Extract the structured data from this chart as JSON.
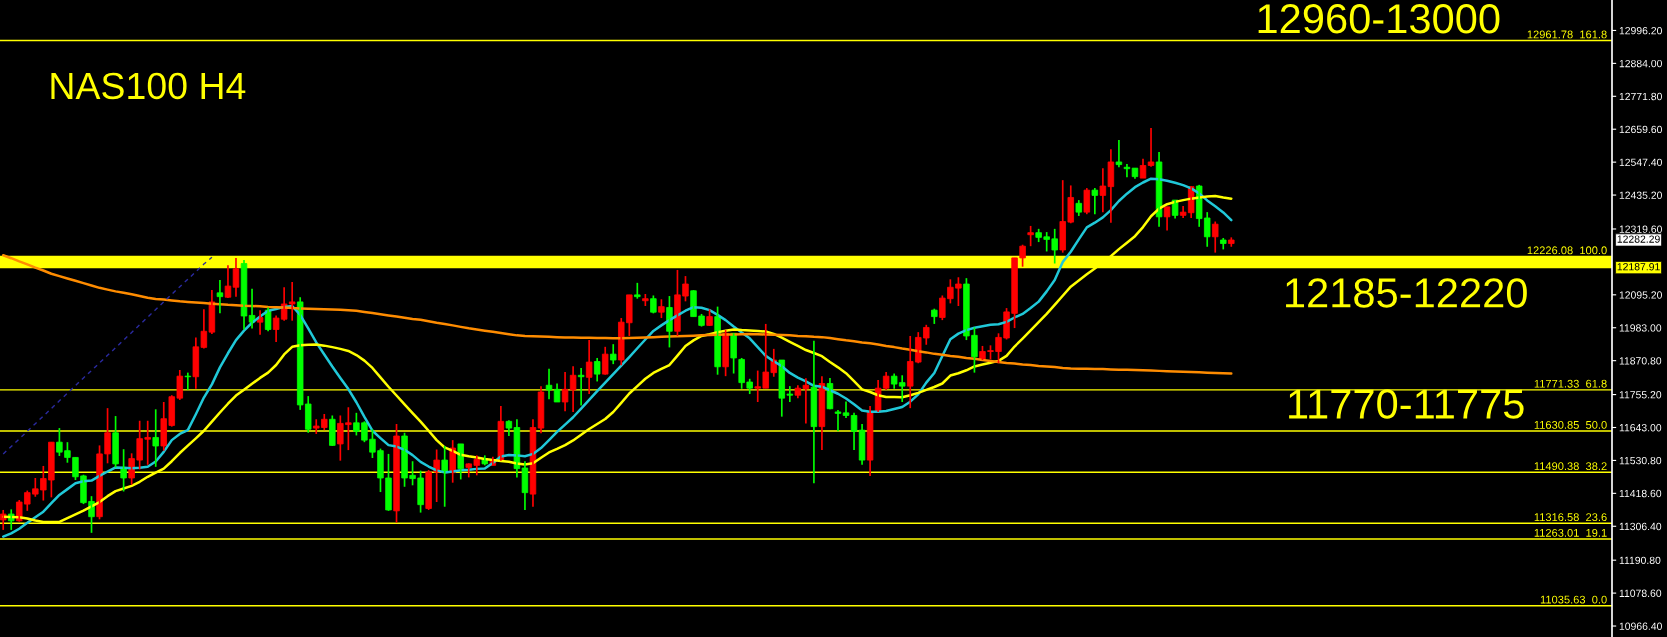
{
  "chart_data": {
    "type": "candlestick",
    "title": "NAS100 H4",
    "categories": [
      null,
      null,
      null,
      null,
      null,
      null,
      null,
      null,
      null,
      null,
      null,
      null,
      null,
      null,
      null,
      null,
      null,
      null,
      null,
      null,
      null,
      null,
      null,
      null,
      null,
      null,
      null,
      null,
      null,
      null,
      null,
      null,
      null,
      null,
      null,
      null,
      null,
      null,
      null,
      null,
      null,
      null,
      null,
      null,
      null,
      null,
      null,
      null,
      null,
      null,
      null,
      null,
      null,
      null,
      null,
      null,
      null,
      null,
      null,
      null,
      null,
      null,
      null,
      null,
      null,
      null,
      null,
      null,
      null,
      null,
      null,
      null,
      null,
      null,
      null,
      null,
      null,
      null,
      null,
      null,
      null,
      null,
      null,
      null,
      null,
      null,
      null,
      null,
      null,
      null,
      null,
      null,
      null,
      null,
      null,
      null,
      null,
      null,
      null,
      null,
      null,
      null,
      null,
      null,
      null,
      null,
      null,
      null,
      null,
      null,
      null,
      null,
      null,
      null,
      null,
      null,
      null,
      null,
      null,
      null,
      null,
      null,
      null,
      null,
      null,
      null,
      null,
      null,
      null,
      null,
      null,
      null,
      null,
      null,
      null,
      null,
      null,
      null,
      null,
      null,
      null,
      null,
      null,
      null,
      null,
      null,
      null,
      null,
      null,
      null,
      null,
      null,
      null,
      null
    ],
    "ohlc": [
      [
        11328,
        11362,
        11294,
        11348
      ],
      [
        11348,
        11364,
        11294,
        11325
      ],
      [
        11325,
        11396,
        11322,
        11389
      ],
      [
        11382,
        11428,
        11359,
        11421
      ],
      [
        11416,
        11471,
        11407,
        11434
      ],
      [
        11430,
        11512,
        11394,
        11469
      ],
      [
        11464,
        11593,
        11405,
        11593
      ],
      [
        11593,
        11641,
        11546,
        11559
      ],
      [
        11564,
        11593,
        11523,
        11541
      ],
      [
        11541,
        11541,
        11464,
        11475
      ],
      [
        11478,
        11482,
        11382,
        11387
      ],
      [
        11391,
        11409,
        11284,
        11339
      ],
      [
        11339,
        11582,
        11330,
        11553
      ],
      [
        11553,
        11709,
        11521,
        11625
      ],
      [
        11625,
        11682,
        11507,
        11519
      ],
      [
        11507,
        11569,
        11425,
        11471
      ],
      [
        11471,
        11555,
        11448,
        11537
      ],
      [
        11532,
        11666,
        11500,
        11605
      ],
      [
        11603,
        11666,
        11516,
        11609
      ],
      [
        11609,
        11705,
        11509,
        11580
      ],
      [
        11580,
        11730,
        11564,
        11673
      ],
      [
        11650,
        11753,
        11646,
        11748
      ],
      [
        11743,
        11839,
        11737,
        11818
      ],
      [
        11818,
        11830,
        11771,
        11816
      ],
      [
        11816,
        11950,
        11775,
        11918
      ],
      [
        11916,
        12046,
        11912,
        11971
      ],
      [
        11968,
        12112,
        11962,
        12071
      ],
      [
        12102,
        12146,
        12032,
        12089
      ],
      [
        12087,
        12196,
        12084,
        12125
      ],
      [
        12121,
        12221,
        12089,
        12184
      ],
      [
        12202,
        12214,
        11977,
        12023
      ],
      [
        12025,
        12116,
        11980,
        12002
      ],
      [
        12002,
        12043,
        11959,
        12018
      ],
      [
        12043,
        12052,
        11971,
        11977
      ],
      [
        11977,
        12025,
        11934,
        12016
      ],
      [
        12012,
        12121,
        12007,
        12064
      ],
      [
        12064,
        12139,
        12007,
        12071
      ],
      [
        12071,
        12087,
        11703,
        11720
      ],
      [
        11723,
        11750,
        11625,
        11637
      ],
      [
        11641,
        11671,
        11621,
        11648
      ],
      [
        11643,
        11689,
        11634,
        11671
      ],
      [
        11671,
        11684,
        11580,
        11582
      ],
      [
        11587,
        11684,
        11530,
        11657
      ],
      [
        11653,
        11712,
        11566,
        11659
      ],
      [
        11659,
        11693,
        11616,
        11630
      ],
      [
        11659,
        11664,
        11593,
        11600
      ],
      [
        11603,
        11637,
        11539,
        11559
      ],
      [
        11564,
        11571,
        11423,
        11471
      ],
      [
        11471,
        11553,
        11359,
        11362
      ],
      [
        11359,
        11655,
        11319,
        11614
      ],
      [
        11614,
        11625,
        11441,
        11471
      ],
      [
        11480,
        11528,
        11446,
        11469
      ],
      [
        11471,
        11496,
        11353,
        11380
      ],
      [
        11367,
        11498,
        11362,
        11491
      ],
      [
        11491,
        11568,
        11389,
        11532
      ],
      [
        11532,
        11580,
        11373,
        11489
      ],
      [
        11489,
        11600,
        11455,
        11573
      ],
      [
        11587,
        11587,
        11466,
        11503
      ],
      [
        11507,
        11521,
        11473,
        11519
      ],
      [
        11514,
        11548,
        11480,
        11534
      ],
      [
        11537,
        11548,
        11514,
        11519
      ],
      [
        11514,
        11543,
        11514,
        11530
      ],
      [
        11530,
        11716,
        11530,
        11664
      ],
      [
        11664,
        11668,
        11614,
        11641
      ],
      [
        11643,
        11671,
        11473,
        11503
      ],
      [
        11505,
        11528,
        11362,
        11421
      ],
      [
        11416,
        11671,
        11373,
        11643
      ],
      [
        11641,
        11784,
        11623,
        11764
      ],
      [
        11787,
        11843,
        11739,
        11771
      ],
      [
        11773,
        11793,
        11730,
        11730
      ],
      [
        11730,
        11832,
        11698,
        11773
      ],
      [
        11771,
        11852,
        11696,
        11821
      ],
      [
        11821,
        11846,
        11718,
        11816
      ],
      [
        11814,
        11941,
        11757,
        11866
      ],
      [
        11868,
        11880,
        11800,
        11825
      ],
      [
        11825,
        11918,
        11823,
        11893
      ],
      [
        11893,
        11927,
        11859,
        11873
      ],
      [
        11873,
        12016,
        11855,
        12002
      ],
      [
        12000,
        12095,
        11955,
        12095
      ],
      [
        12095,
        12136,
        12082,
        12089
      ],
      [
        12075,
        12098,
        12057,
        12082
      ],
      [
        12082,
        12093,
        12032,
        12036
      ],
      [
        12036,
        12080,
        12016,
        12055
      ],
      [
        12052,
        12091,
        11916,
        11971
      ],
      [
        11971,
        12180,
        11955,
        12095
      ],
      [
        12091,
        12159,
        12073,
        12132
      ],
      [
        12109,
        12111,
        12021,
        12021
      ],
      [
        12023,
        12030,
        11987,
        11991
      ],
      [
        11991,
        12046,
        11989,
        12021
      ],
      [
        12021,
        12055,
        11823,
        11850
      ],
      [
        11850,
        11975,
        11818,
        11964
      ],
      [
        11964,
        11964,
        11827,
        11880
      ],
      [
        11875,
        11880,
        11775,
        11796
      ],
      [
        11798,
        11809,
        11757,
        11777
      ],
      [
        11777,
        11837,
        11730,
        11782
      ],
      [
        11777,
        11996,
        11777,
        11832
      ],
      [
        11830,
        11911,
        11816,
        11873
      ],
      [
        11873,
        11873,
        11680,
        11743
      ],
      [
        11757,
        11784,
        11730,
        11753
      ],
      [
        11753,
        11787,
        11743,
        11777
      ],
      [
        11775,
        11811,
        11657,
        11787
      ],
      [
        11780,
        11939,
        11453,
        11646
      ],
      [
        11646,
        11818,
        11566,
        11793
      ],
      [
        11793,
        11812,
        11705,
        11707
      ],
      [
        11696,
        11703,
        11630,
        11691
      ],
      [
        11693,
        11732,
        11675,
        11684
      ],
      [
        11684,
        11693,
        11566,
        11630
      ],
      [
        11634,
        11655,
        11516,
        11532
      ],
      [
        11532,
        11716,
        11478,
        11696
      ],
      [
        11696,
        11805,
        11696,
        11777
      ],
      [
        11777,
        11832,
        11771,
        11818
      ],
      [
        11818,
        11827,
        11775,
        11791
      ],
      [
        11796,
        11821,
        11730,
        11784
      ],
      [
        11784,
        11955,
        11709,
        11868
      ],
      [
        11866,
        11968,
        11862,
        11950
      ],
      [
        11948,
        11993,
        11925,
        11984
      ],
      [
        12043,
        12048,
        11996,
        12021
      ],
      [
        12018,
        12093,
        12009,
        12084
      ],
      [
        12082,
        12148,
        12066,
        12121
      ],
      [
        12118,
        12155,
        12057,
        12132
      ],
      [
        12132,
        12152,
        11941,
        11955
      ],
      [
        11957,
        11984,
        11830,
        11884
      ],
      [
        11875,
        11921,
        11873,
        11902
      ],
      [
        11902,
        11923,
        11875,
        11905
      ],
      [
        11902,
        11964,
        11862,
        11950
      ],
      [
        11948,
        12050,
        11943,
        12037
      ],
      [
        12032,
        12221,
        11982,
        12221
      ],
      [
        12221,
        12266,
        12191,
        12261
      ],
      [
        12300,
        12330,
        12261,
        12307
      ],
      [
        12307,
        12320,
        12275,
        12291
      ],
      [
        12293,
        12309,
        12243,
        12284
      ],
      [
        12286,
        12320,
        12202,
        12248
      ],
      [
        12248,
        12486,
        12239,
        12345
      ],
      [
        12343,
        12468,
        12339,
        12427
      ],
      [
        12407,
        12418,
        12364,
        12377
      ],
      [
        12377,
        12459,
        12370,
        12452
      ],
      [
        12452,
        12459,
        12370,
        12434
      ],
      [
        12434,
        12527,
        12377,
        12466
      ],
      [
        12464,
        12591,
        12341,
        12548
      ],
      [
        12548,
        12623,
        12530,
        12539
      ],
      [
        12530,
        12541,
        12496,
        12525
      ],
      [
        12527,
        12527,
        12491,
        12498
      ],
      [
        12493,
        12559,
        12493,
        12536
      ],
      [
        12536,
        12664,
        12532,
        12548
      ],
      [
        12548,
        12582,
        12327,
        12361
      ],
      [
        12361,
        12395,
        12314,
        12395
      ],
      [
        12418,
        12418,
        12355,
        12366
      ],
      [
        12366,
        12398,
        12357,
        12377
      ],
      [
        12375,
        12464,
        12357,
        12464
      ],
      [
        12466,
        12470,
        12327,
        12355
      ],
      [
        12357,
        12377,
        12259,
        12293
      ],
      [
        12293,
        12345,
        12239,
        12336
      ],
      [
        12282,
        12289,
        12250,
        12270
      ],
      [
        12270,
        12291,
        12259,
        12282
      ]
    ],
    "colors": [
      "#ff0000",
      "#00ff00",
      "#ff0000",
      "#ff0000",
      "#ff0000",
      "#ff0000",
      "#ff0000",
      "#00ff00",
      "#00ff00",
      "#00ff00",
      "#00ff00",
      "#00ff00",
      "#ff0000",
      "#ff0000",
      "#00ff00",
      "#00ff00",
      "#ff0000",
      "#ff0000",
      "#ff0000",
      "#00ff00",
      "#ff0000",
      "#ff0000",
      "#ff0000",
      "#00ff00",
      "#ff0000",
      "#ff0000",
      "#ff0000",
      "#00ff00",
      "#ff0000",
      "#ff0000",
      "#00ff00",
      "#00ff00",
      "#ff0000",
      "#00ff00",
      "#ff0000",
      "#ff0000",
      "#ff0000",
      "#00ff00",
      "#00ff00",
      "#ff0000",
      "#ff0000",
      "#00ff00",
      "#ff0000",
      "#ff0000",
      "#00ff00",
      "#00ff00",
      "#00ff00",
      "#00ff00",
      "#00ff00",
      "#ff0000",
      "#00ff00",
      "#00ff00",
      "#00ff00",
      "#ff0000",
      "#ff0000",
      "#00ff00",
      "#ff0000",
      "#00ff00",
      "#ff0000",
      "#ff0000",
      "#00ff00",
      "#ff0000",
      "#ff0000",
      "#00ff00",
      "#00ff00",
      "#00ff00",
      "#ff0000",
      "#ff0000",
      "#00ff00",
      "#00ff00",
      "#ff0000",
      "#ff0000",
      "#00ff00",
      "#ff0000",
      "#00ff00",
      "#ff0000",
      "#00ff00",
      "#ff0000",
      "#ff0000",
      "#00ff00",
      "#ff0000",
      "#00ff00",
      "#ff0000",
      "#00ff00",
      "#ff0000",
      "#ff0000",
      "#00ff00",
      "#00ff00",
      "#ff0000",
      "#00ff00",
      "#ff0000",
      "#00ff00",
      "#00ff00",
      "#00ff00",
      "#ff0000",
      "#ff0000",
      "#ff0000",
      "#00ff00",
      "#00ff00",
      "#ff0000",
      "#ff0000",
      "#00ff00",
      "#ff0000",
      "#00ff00",
      "#00ff00",
      "#00ff00",
      "#00ff00",
      "#00ff00",
      "#ff0000",
      "#ff0000",
      "#ff0000",
      "#00ff00",
      "#00ff00",
      "#ff0000",
      "#ff0000",
      "#ff0000",
      "#00ff00",
      "#ff0000",
      "#ff0000",
      "#ff0000",
      "#00ff00",
      "#00ff00",
      "#ff0000",
      "#ff0000",
      "#ff0000",
      "#ff0000",
      "#ff0000",
      "#ff0000",
      "#ff0000",
      "#00ff00",
      "#00ff00",
      "#00ff00",
      "#ff0000",
      "#ff0000",
      "#00ff00",
      "#ff0000",
      "#00ff00",
      "#ff0000",
      "#ff0000",
      "#00ff00",
      "#00ff00",
      "#00ff00",
      "#ff0000",
      "#ff0000",
      "#00ff00",
      "#ff0000",
      "#00ff00",
      "#ff0000",
      "#ff0000",
      "#00ff00",
      "#00ff00",
      "#ff0000",
      "#00ff00",
      "#ff0000"
    ],
    "series": [
      {
        "type": "line",
        "color": "#20c8d8",
        "values": [
          11271,
          11282,
          11298,
          11318,
          11337,
          11356,
          11385,
          11413,
          11433,
          11453,
          11460,
          11462,
          11478,
          11493,
          11507,
          11506,
          11504,
          11506,
          11509,
          11527,
          11560,
          11600,
          11621,
          11634,
          11688,
          11745,
          11790,
          11848,
          11896,
          11941,
          11973,
          12000,
          12021,
          12041,
          12047,
          12054,
          12057,
          12027,
          11981,
          11933,
          11892,
          11851,
          11812,
          11774,
          11729,
          11679,
          11632,
          11607,
          11583,
          11578,
          11567,
          11549,
          11526,
          11510,
          11497,
          11490,
          11493,
          11497,
          11499,
          11502,
          11503,
          11522,
          11544,
          11549,
          11548,
          11545,
          11553,
          11573,
          11600,
          11628,
          11653,
          11678,
          11707,
          11737,
          11767,
          11796,
          11825,
          11854,
          11883,
          11913,
          11943,
          11972,
          11991,
          12009,
          12025,
          12041,
          12053,
          12051,
          12043,
          12027,
          12009,
          11987,
          11967,
          11947,
          11917,
          11887,
          11869,
          11852,
          11829,
          11813,
          11800,
          11785,
          11782,
          11770,
          11758,
          11742,
          11722,
          11701,
          11697,
          11697,
          11699,
          11706,
          11713,
          11731,
          11756,
          11796,
          11829,
          11887,
          11944,
          11963,
          11975,
          11983,
          11988,
          11993,
          11995,
          12003,
          12018,
          12030,
          12050,
          12072,
          12107,
          12146,
          12207,
          12242,
          12284,
          12325,
          12341,
          12359,
          12384,
          12415,
          12440,
          12462,
          12478,
          12491,
          12489,
          12484,
          12477,
          12469,
          12458,
          12441,
          12417,
          12397,
          12376,
          12350
        ]
      },
      {
        "type": "line",
        "color": "#ffff00",
        "values": [
          11339,
          11338,
          11337,
          11333,
          11326,
          11321,
          11321,
          11321,
          11334,
          11347,
          11360,
          11374,
          11389,
          11409,
          11426,
          11435,
          11444,
          11458,
          11475,
          11489,
          11503,
          11528,
          11556,
          11581,
          11606,
          11632,
          11663,
          11694,
          11724,
          11752,
          11772,
          11792,
          11812,
          11830,
          11856,
          11892,
          11918,
          11923,
          11925,
          11926,
          11922,
          11917,
          11911,
          11904,
          11890,
          11871,
          11846,
          11814,
          11782,
          11752,
          11722,
          11692,
          11663,
          11632,
          11600,
          11575,
          11563,
          11550,
          11545,
          11541,
          11536,
          11532,
          11529,
          11526,
          11520,
          11517,
          11521,
          11540,
          11558,
          11570,
          11583,
          11599,
          11618,
          11638,
          11655,
          11672,
          11696,
          11727,
          11759,
          11784,
          11809,
          11829,
          11843,
          11856,
          11888,
          11921,
          11940,
          11955,
          11961,
          11968,
          11973,
          11977,
          11975,
          11974,
          11972,
          11970,
          11962,
          11949,
          11935,
          11921,
          11907,
          11897,
          11886,
          11866,
          11848,
          11828,
          11801,
          11773,
          11764,
          11753,
          11747,
          11747,
          11746,
          11753,
          11761,
          11771,
          11781,
          11793,
          11820,
          11828,
          11838,
          11851,
          11858,
          11864,
          11870,
          11887,
          11919,
          11946,
          11974,
          12002,
          12030,
          12061,
          12092,
          12123,
          12144,
          12165,
          12185,
          12206,
          12227,
          12251,
          12273,
          12295,
          12326,
          12363,
          12389,
          12404,
          12412,
          12418,
          12423,
          12427,
          12430,
          12432,
          12427,
          12423
        ]
      },
      {
        "type": "line",
        "color": "#ff8c00",
        "values": [
          12230,
          12220,
          12209,
          12199,
          12188,
          12178,
          12167,
          12159,
          12151,
          12143,
          12135,
          12127,
          12119,
          12113,
          12107,
          12102,
          12097,
          12091,
          12085,
          12081,
          12079,
          12076,
          12073,
          12071,
          12069,
          12067,
          12065,
          12063,
          12061,
          12060,
          12058,
          12057,
          12056,
          12054,
          12053,
          12052,
          12050,
          12049,
          12048,
          12047,
          12046,
          12045,
          12044,
          12043,
          12041,
          12037,
          12033,
          12029,
          12025,
          12021,
          12017,
          12013,
          12010,
          12005,
          12000,
          11996,
          11991,
          11986,
          11981,
          11977,
          11973,
          11969,
          11965,
          11961,
          11957,
          11955,
          11954,
          11953,
          11952,
          11951,
          11950,
          11950,
          11949,
          11949,
          11948,
          11948,
          11947,
          11947,
          11948,
          11949,
          11950,
          11951,
          11952,
          11953,
          11954,
          11955,
          11956,
          11957,
          11958,
          11959,
          11960,
          11960,
          11961,
          11962,
          11961,
          11960,
          11959,
          11958,
          11957,
          11955,
          11954,
          11952,
          11951,
          11948,
          11944,
          11940,
          11937,
          11933,
          11930,
          11926,
          11921,
          11917,
          11912,
          11908,
          11903,
          11899,
          11894,
          11891,
          11887,
          11884,
          11880,
          11877,
          11873,
          11870,
          11866,
          11863,
          11861,
          11858,
          11856,
          11853,
          11851,
          11849,
          11846,
          11844,
          11843,
          11843,
          11842,
          11842,
          11841,
          11840,
          11840,
          11839,
          11838,
          11837,
          11836,
          11835,
          11834,
          11833,
          11832,
          11831,
          11830,
          11829,
          11828,
          11827
        ]
      },
      {
        "type": "line",
        "color": "#2a2aa0",
        "line_style": "dashed",
        "values": [
          11553,
          11578,
          11604,
          11630,
          11656,
          11682,
          11708,
          11734,
          11760,
          11786,
          11812,
          11837,
          11863,
          11889,
          11915,
          11941,
          11967,
          11993,
          12019,
          12045,
          12071,
          12097,
          12123,
          12148,
          12174,
          12200,
          12223,
          null,
          null,
          null,
          null,
          null,
          null,
          null,
          null,
          null,
          null,
          null,
          null,
          null,
          null,
          null,
          null,
          null,
          null,
          null,
          null,
          null,
          null,
          null,
          null,
          null,
          null,
          null,
          null,
          null,
          null,
          null,
          null,
          null,
          null,
          null,
          null,
          null,
          null,
          null,
          null,
          null,
          null,
          null,
          null,
          null,
          null,
          null,
          null,
          null,
          null,
          null,
          null,
          null,
          null,
          null,
          null,
          null,
          null,
          null,
          null,
          null,
          null,
          null,
          null,
          null,
          null,
          null,
          null,
          null,
          null,
          null,
          null,
          null,
          null,
          null,
          null,
          null,
          null,
          null,
          null,
          null,
          null,
          null,
          null,
          null,
          null,
          null,
          null,
          null,
          null,
          null,
          null,
          null,
          null,
          null,
          null,
          null,
          null,
          null,
          null,
          null,
          null,
          null,
          null,
          null,
          null,
          null,
          null,
          null,
          null,
          null,
          null,
          null,
          null,
          null,
          null,
          null,
          null,
          null,
          null,
          null,
          null,
          null,
          null,
          null,
          null,
          null
        ]
      }
    ],
    "ylim": [
      10929,
      13100
    ],
    "yticks": [
      {
        "value": 12996.2,
        "label": "12996.20"
      },
      {
        "value": 12884,
        "label": "12884.00"
      },
      {
        "value": 12771.8,
        "label": "12771.80"
      },
      {
        "value": 12659.6,
        "label": "12659.60"
      },
      {
        "value": 12547.4,
        "label": "12547.40"
      },
      {
        "value": 12435.2,
        "label": "12435.20"
      },
      {
        "value": 12319.6,
        "label": "12319.60"
      },
      {
        "value": 12095.2,
        "label": "12095.20"
      },
      {
        "value": 11983,
        "label": "11983.00"
      },
      {
        "value": 11870.8,
        "label": "11870.80"
      },
      {
        "value": 11755.2,
        "label": "11755.20"
      },
      {
        "value": 11643,
        "label": "11643.00"
      },
      {
        "value": 11530.8,
        "label": "11530.80"
      },
      {
        "value": 11418.6,
        "label": "11418.60"
      },
      {
        "value": 11306.4,
        "label": "11306.40"
      },
      {
        "value": 11190.8,
        "label": "11190.80"
      },
      {
        "value": 11078.6,
        "label": "11078.60"
      },
      {
        "value": 10966.4,
        "label": "10966.40"
      }
    ],
    "tick_labels": "y",
    "ref_lines": [
      {
        "axis": "y",
        "value": 12961.78,
        "label": "12961.78  161.8",
        "color": "#ffff00"
      },
      {
        "axis": "y",
        "value": 12226.08,
        "label": "12226.08  100.0",
        "color": "#ffff00"
      },
      {
        "axis": "y",
        "value": 12187.91,
        "color": "#ffff00"
      },
      {
        "axis": "y",
        "value": 11771.33,
        "label": "11771.33  61.8",
        "color": "#ffff00"
      },
      {
        "axis": "y",
        "value": 11630.85,
        "label": "11630.85  50.0",
        "color": "#ffff00"
      },
      {
        "axis": "y",
        "value": 11490.38,
        "label": "11490.38  38.2",
        "color": "#ffff00"
      },
      {
        "axis": "y",
        "value": 11316.58,
        "label": "11316.58  23.6",
        "color": "#ffff00"
      },
      {
        "axis": "y",
        "value": 11263.01,
        "label": "11263.01  19.1",
        "color": "#ffff00"
      },
      {
        "axis": "y",
        "value": 11035.63,
        "label": "11035.63  0.0",
        "color": "#ffff00"
      }
    ],
    "bands": [
      {
        "axis": "y",
        "from": 12187.91,
        "to": 12226.08,
        "label": "12185-12220",
        "color": "#ffff00"
      }
    ],
    "annotations": [
      "12960-13000",
      "11770-11775",
      "12282.29",
      "12187.91"
    ]
  }
}
